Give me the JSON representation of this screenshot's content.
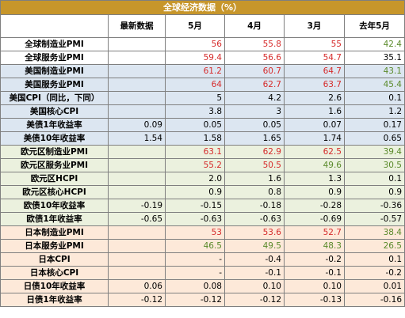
{
  "title": "全球经济数据（%）",
  "headers": [
    "",
    "最新数据",
    "5月",
    "4月",
    "3月",
    "去年5月"
  ],
  "rows": [
    {
      "label": "全球制造业PMI",
      "bg": "white",
      "cells": [
        {
          "v": "",
          "c": "blk"
        },
        {
          "v": "56",
          "c": "red"
        },
        {
          "v": "55.8",
          "c": "red"
        },
        {
          "v": "55",
          "c": "red"
        },
        {
          "v": "42.4",
          "c": "green"
        }
      ]
    },
    {
      "label": "全球服务业PMI",
      "bg": "white",
      "cells": [
        {
          "v": "",
          "c": "blk"
        },
        {
          "v": "59.4",
          "c": "red"
        },
        {
          "v": "56.6",
          "c": "red"
        },
        {
          "v": "54.7",
          "c": "red"
        },
        {
          "v": "35.1",
          "c": "blk"
        }
      ]
    },
    {
      "label": "美国制造业PMI",
      "bg": "blue",
      "cells": [
        {
          "v": "",
          "c": "blk"
        },
        {
          "v": "61.2",
          "c": "red"
        },
        {
          "v": "60.7",
          "c": "red"
        },
        {
          "v": "64.7",
          "c": "red"
        },
        {
          "v": "43.1",
          "c": "green"
        }
      ]
    },
    {
      "label": "美国服务业PMI",
      "bg": "blue",
      "cells": [
        {
          "v": "",
          "c": "blk"
        },
        {
          "v": "64",
          "c": "red"
        },
        {
          "v": "62.7",
          "c": "red"
        },
        {
          "v": "63.7",
          "c": "red"
        },
        {
          "v": "45.4",
          "c": "green"
        }
      ]
    },
    {
      "label": "美国CPI（同比，下同）",
      "bg": "blue",
      "cells": [
        {
          "v": "",
          "c": "blk"
        },
        {
          "v": "5",
          "c": "blk"
        },
        {
          "v": "4.2",
          "c": "blk"
        },
        {
          "v": "2.6",
          "c": "blk"
        },
        {
          "v": "0.1",
          "c": "blk"
        }
      ]
    },
    {
      "label": "美国核心CPI",
      "bg": "blue",
      "cells": [
        {
          "v": "",
          "c": "blk"
        },
        {
          "v": "3.8",
          "c": "blk"
        },
        {
          "v": "3",
          "c": "blk"
        },
        {
          "v": "1.6",
          "c": "blk"
        },
        {
          "v": "1.2",
          "c": "blk"
        }
      ]
    },
    {
      "label": "美债1年收益率",
      "bg": "blue",
      "cells": [
        {
          "v": "0.09",
          "c": "blk"
        },
        {
          "v": "0.05",
          "c": "blk"
        },
        {
          "v": "0.05",
          "c": "blk"
        },
        {
          "v": "0.07",
          "c": "blk"
        },
        {
          "v": "0.17",
          "c": "blk"
        }
      ]
    },
    {
      "label": "美债10年收益率",
      "bg": "blue",
      "cells": [
        {
          "v": "1.54",
          "c": "blk"
        },
        {
          "v": "1.58",
          "c": "blk"
        },
        {
          "v": "1.65",
          "c": "blk"
        },
        {
          "v": "1.74",
          "c": "blk"
        },
        {
          "v": "0.65",
          "c": "blk"
        }
      ]
    },
    {
      "label": "欧元区制造业PMI",
      "bg": "green",
      "cells": [
        {
          "v": "",
          "c": "blk"
        },
        {
          "v": "63.1",
          "c": "red"
        },
        {
          "v": "62.9",
          "c": "red"
        },
        {
          "v": "62.5",
          "c": "red"
        },
        {
          "v": "39.4",
          "c": "green"
        }
      ]
    },
    {
      "label": "欧元区服务业PMI",
      "bg": "green",
      "cells": [
        {
          "v": "",
          "c": "blk"
        },
        {
          "v": "55.2",
          "c": "red"
        },
        {
          "v": "50.5",
          "c": "red"
        },
        {
          "v": "49.6",
          "c": "green"
        },
        {
          "v": "30.5",
          "c": "green"
        }
      ]
    },
    {
      "label": "欧元区HCPI",
      "bg": "green",
      "cells": [
        {
          "v": "",
          "c": "blk"
        },
        {
          "v": "2.0",
          "c": "blk"
        },
        {
          "v": "1.6",
          "c": "blk"
        },
        {
          "v": "1.3",
          "c": "blk"
        },
        {
          "v": "0.1",
          "c": "blk"
        }
      ]
    },
    {
      "label": "欧元区核心HCPI",
      "bg": "green",
      "cells": [
        {
          "v": "",
          "c": "blk"
        },
        {
          "v": "0.9",
          "c": "blk"
        },
        {
          "v": "0.8",
          "c": "blk"
        },
        {
          "v": "0.9",
          "c": "blk"
        },
        {
          "v": "0.9",
          "c": "blk"
        }
      ]
    },
    {
      "label": "欧债10年收益率",
      "bg": "green",
      "cells": [
        {
          "v": "-0.19",
          "c": "blk"
        },
        {
          "v": "-0.15",
          "c": "blk"
        },
        {
          "v": "-0.18",
          "c": "blk"
        },
        {
          "v": "-0.28",
          "c": "blk"
        },
        {
          "v": "-0.36",
          "c": "blk"
        }
      ]
    },
    {
      "label": "欧债1年收益率",
      "bg": "green",
      "cells": [
        {
          "v": "-0.65",
          "c": "blk"
        },
        {
          "v": "-0.63",
          "c": "blk"
        },
        {
          "v": "-0.63",
          "c": "blk"
        },
        {
          "v": "-0.69",
          "c": "blk"
        },
        {
          "v": "-0.57",
          "c": "blk"
        }
      ]
    },
    {
      "label": "日本制造业PMI",
      "bg": "pink",
      "cells": [
        {
          "v": "",
          "c": "blk"
        },
        {
          "v": "53",
          "c": "red"
        },
        {
          "v": "53.6",
          "c": "red"
        },
        {
          "v": "52.7",
          "c": "red"
        },
        {
          "v": "38.4",
          "c": "green"
        }
      ]
    },
    {
      "label": "日本服务业PMI",
      "bg": "pink",
      "cells": [
        {
          "v": "",
          "c": "blk"
        },
        {
          "v": "46.5",
          "c": "green"
        },
        {
          "v": "49.5",
          "c": "green"
        },
        {
          "v": "48.3",
          "c": "green"
        },
        {
          "v": "26.5",
          "c": "green"
        }
      ]
    },
    {
      "label": "日本CPI",
      "bg": "pink",
      "cells": [
        {
          "v": "",
          "c": "blk"
        },
        {
          "v": "-",
          "c": "blk"
        },
        {
          "v": "-0.4",
          "c": "blk"
        },
        {
          "v": "-0.2",
          "c": "blk"
        },
        {
          "v": "0.1",
          "c": "blk"
        }
      ]
    },
    {
      "label": "日本核心CPI",
      "bg": "pink",
      "cells": [
        {
          "v": "",
          "c": "blk"
        },
        {
          "v": "-",
          "c": "blk"
        },
        {
          "v": "-0.1",
          "c": "blk"
        },
        {
          "v": "-0.1",
          "c": "blk"
        },
        {
          "v": "-0.2",
          "c": "blk"
        }
      ]
    },
    {
      "label": "日债10年收益率",
      "bg": "pink",
      "cells": [
        {
          "v": "0.06",
          "c": "blk"
        },
        {
          "v": "0.08",
          "c": "blk"
        },
        {
          "v": "0.10",
          "c": "blk"
        },
        {
          "v": "0.10",
          "c": "blk"
        },
        {
          "v": "0.01",
          "c": "blk"
        }
      ]
    },
    {
      "label": "日债1年收益率",
      "bg": "pink",
      "cells": [
        {
          "v": "-0.12",
          "c": "blk"
        },
        {
          "v": "-0.12",
          "c": "blk"
        },
        {
          "v": "-0.12",
          "c": "blk"
        },
        {
          "v": "-0.13",
          "c": "blk"
        },
        {
          "v": "-0.16",
          "c": "blk"
        }
      ]
    }
  ]
}
